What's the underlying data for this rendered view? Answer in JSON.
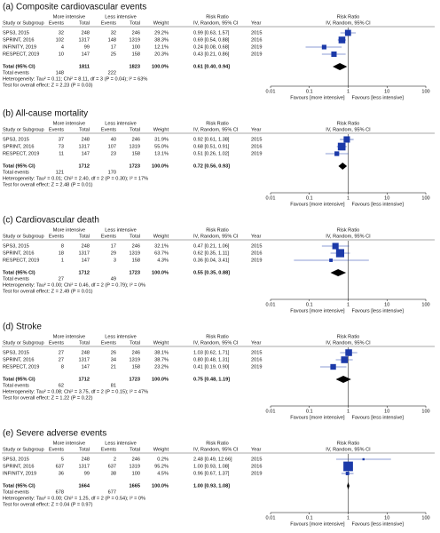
{
  "header": {
    "group1": "More intensive",
    "group2": "Less intensive",
    "effect": "Risk Ratio",
    "study": "Study or Subgroup",
    "events": "Events",
    "total": "Total",
    "weight": "Weight",
    "method": "IV, Random, 95% CI",
    "year": "Year",
    "total_row": "Total (95% CI)",
    "total_events": "Total events",
    "favours_left": "Favours [more intensive]",
    "favours_right": "Favours [less intensive]"
  },
  "axis": {
    "xlim": [
      0.01,
      100
    ],
    "xticks": [
      0.01,
      0.1,
      1,
      10,
      100
    ],
    "log": true,
    "marker_color": "#1c3aa9",
    "diamond_color": "#000000"
  },
  "panels": [
    {
      "title": "(a) Composite cardiovascular events",
      "studies": [
        {
          "name": "SPS3, 2015",
          "e1": 32,
          "n1": 248,
          "e2": 32,
          "n2": 246,
          "weight": 29.2,
          "weight_label": "29.2%",
          "rr": 0.99,
          "lo": 0.63,
          "hi": 1.57,
          "ci_label": "0.99 [0.63, 1.57]",
          "year": 2015
        },
        {
          "name": "SPRINT, 2016",
          "e1": 102,
          "n1": 1317,
          "e2": 148,
          "n2": 1319,
          "weight": 38.3,
          "weight_label": "38.3%",
          "rr": 0.69,
          "lo": 0.54,
          "hi": 0.88,
          "ci_label": "0.69 [0.54, 0.88]",
          "year": 2016
        },
        {
          "name": "INFINITY, 2019",
          "e1": 4,
          "n1": 99,
          "e2": 17,
          "n2": 100,
          "weight": 12.1,
          "weight_label": "12.1%",
          "rr": 0.24,
          "lo": 0.08,
          "hi": 0.68,
          "ci_label": "0.24 [0.08, 0.68]",
          "year": 2019
        },
        {
          "name": "RESPECT, 2019",
          "e1": 10,
          "n1": 147,
          "e2": 25,
          "n2": 158,
          "weight": 20.3,
          "weight_label": "20.3%",
          "rr": 0.43,
          "lo": 0.21,
          "hi": 0.86,
          "ci_label": "0.43 [0.21, 0.86]",
          "year": 2019
        }
      ],
      "total": {
        "n1": 1811,
        "n2": 1823,
        "weight_label": "100.0%",
        "rr": 0.61,
        "lo": 0.4,
        "hi": 0.94,
        "ci_label": "0.61 [0.40, 0.94]",
        "e1": 148,
        "e2": 222
      },
      "heterogeneity": "Heterogeneity: Tau² = 0.11; Chi² = 8.11, df = 3 (P = 0.04); I² = 63%",
      "overall": "Test for overall effect: Z = 2.23 (P = 0.03)"
    },
    {
      "title": "(b) All-cause mortality",
      "studies": [
        {
          "name": "SPS3, 2015",
          "e1": 37,
          "n1": 248,
          "e2": 40,
          "n2": 246,
          "weight": 31.9,
          "weight_label": "31.9%",
          "rr": 0.92,
          "lo": 0.61,
          "hi": 1.38,
          "ci_label": "0.92 [0.61, 1.38]",
          "year": 2015
        },
        {
          "name": "SPRINT, 2016",
          "e1": 73,
          "n1": 1317,
          "e2": 107,
          "n2": 1319,
          "weight": 55.0,
          "weight_label": "55.0%",
          "rr": 0.68,
          "lo": 0.51,
          "hi": 0.91,
          "ci_label": "0.68 [0.51, 0.91]",
          "year": 2016
        },
        {
          "name": "RESPECT, 2019",
          "e1": 11,
          "n1": 147,
          "e2": 23,
          "n2": 158,
          "weight": 13.1,
          "weight_label": "13.1%",
          "rr": 0.51,
          "lo": 0.26,
          "hi": 1.02,
          "ci_label": "0.51 [0.26, 1.02]",
          "year": 2019
        }
      ],
      "total": {
        "n1": 1712,
        "n2": 1723,
        "weight_label": "100.0%",
        "rr": 0.72,
        "lo": 0.56,
        "hi": 0.93,
        "ci_label": "0.72 [0.56, 0.93]",
        "e1": 121,
        "e2": 170
      },
      "heterogeneity": "Heterogeneity: Tau² = 0.01; Chi² = 2.40, df = 2 (P = 0.30); I² = 17%",
      "overall": "Test for overall effect: Z = 2.48 (P = 0.01)"
    },
    {
      "title": "(c) Cardiovascular death",
      "studies": [
        {
          "name": "SPS3, 2015",
          "e1": 8,
          "n1": 248,
          "e2": 17,
          "n2": 246,
          "weight": 32.1,
          "weight_label": "32.1%",
          "rr": 0.47,
          "lo": 0.21,
          "hi": 1.06,
          "ci_label": "0.47 [0.21, 1.06]",
          "year": 2015
        },
        {
          "name": "SPRINT, 2016",
          "e1": 18,
          "n1": 1317,
          "e2": 29,
          "n2": 1319,
          "weight": 63.7,
          "weight_label": "63.7%",
          "rr": 0.62,
          "lo": 0.35,
          "hi": 1.11,
          "ci_label": "0.62 [0.35, 1.11]",
          "year": 2016
        },
        {
          "name": "RESPECT, 2019",
          "e1": 1,
          "n1": 147,
          "e2": 3,
          "n2": 158,
          "weight": 4.3,
          "weight_label": "4.3%",
          "rr": 0.36,
          "lo": 0.04,
          "hi": 3.41,
          "ci_label": "0.36 [0.04, 3.41]",
          "year": 2019
        }
      ],
      "total": {
        "n1": 1712,
        "n2": 1723,
        "weight_label": "100.0%",
        "rr": 0.55,
        "lo": 0.35,
        "hi": 0.88,
        "ci_label": "0.55 [0.35, 0.88]",
        "e1": 27,
        "e2": 49
      },
      "heterogeneity": "Heterogeneity: Tau² = 0.00; Chi² = 0.46, df = 2 (P = 0.79); I² = 0%",
      "overall": "Test for overall effect: Z = 2.49 (P = 0.01)"
    },
    {
      "title": "(d) Stroke",
      "studies": [
        {
          "name": "SPS3, 2015",
          "e1": 27,
          "n1": 248,
          "e2": 26,
          "n2": 246,
          "weight": 38.1,
          "weight_label": "38.1%",
          "rr": 1.03,
          "lo": 0.62,
          "hi": 1.71,
          "ci_label": "1.03 [0.62, 1.71]",
          "year": 2015
        },
        {
          "name": "SPRINT, 2016",
          "e1": 27,
          "n1": 1317,
          "e2": 34,
          "n2": 1319,
          "weight": 38.7,
          "weight_label": "38.7%",
          "rr": 0.8,
          "lo": 0.48,
          "hi": 1.31,
          "ci_label": "0.80 [0.48, 1.31]",
          "year": 2016
        },
        {
          "name": "RESPECT, 2019",
          "e1": 8,
          "n1": 147,
          "e2": 21,
          "n2": 158,
          "weight": 23.2,
          "weight_label": "23.2%",
          "rr": 0.41,
          "lo": 0.19,
          "hi": 0.9,
          "ci_label": "0.41 [0.19, 0.90]",
          "year": 2019
        }
      ],
      "total": {
        "n1": 1712,
        "n2": 1723,
        "weight_label": "100.0%",
        "rr": 0.75,
        "lo": 0.48,
        "hi": 1.19,
        "ci_label": "0.75 [0.48, 1.19]",
        "e1": 62,
        "e2": 81
      },
      "heterogeneity": "Heterogeneity: Tau² = 0.08; Chi² = 3.75, df = 2 (P = 0.15); I² = 47%",
      "overall": "Test for overall effect: Z = 1.22 (P = 0.22)"
    },
    {
      "title": "(e) Severe adverse events",
      "studies": [
        {
          "name": "SPS3, 2015",
          "e1": 5,
          "n1": 248,
          "e2": 2,
          "n2": 246,
          "weight": 0.2,
          "weight_label": "0.2%",
          "rr": 2.48,
          "lo": 0.49,
          "hi": 12.66,
          "ci_label": "2.48 [0.49, 12.66]",
          "year": 2015
        },
        {
          "name": "SPRINT, 2016",
          "e1": 637,
          "n1": 1317,
          "e2": 637,
          "n2": 1319,
          "weight": 95.2,
          "weight_label": "95.2%",
          "rr": 1.0,
          "lo": 0.93,
          "hi": 1.08,
          "ci_label": "1.00 [0.93, 1.08]",
          "year": 2016
        },
        {
          "name": "INFINITY, 2019",
          "e1": 36,
          "n1": 99,
          "e2": 38,
          "n2": 100,
          "weight": 4.5,
          "weight_label": "4.5%",
          "rr": 0.96,
          "lo": 0.67,
          "hi": 1.37,
          "ci_label": "0.96 [0.67, 1.37]",
          "year": 2019
        }
      ],
      "total": {
        "n1": 1664,
        "n2": 1665,
        "weight_label": "100.0%",
        "rr": 1.0,
        "lo": 0.93,
        "hi": 1.08,
        "ci_label": "1.00 [0.93, 1.08]",
        "e1": 678,
        "e2": 677
      },
      "heterogeneity": "Heterogeneity: Tau² = 0.00; Chi² = 1.25, df = 2 (P = 0.54); I² = 0%",
      "overall": "Test for overall effect: Z = 0.04 (P = 0.97)"
    }
  ]
}
